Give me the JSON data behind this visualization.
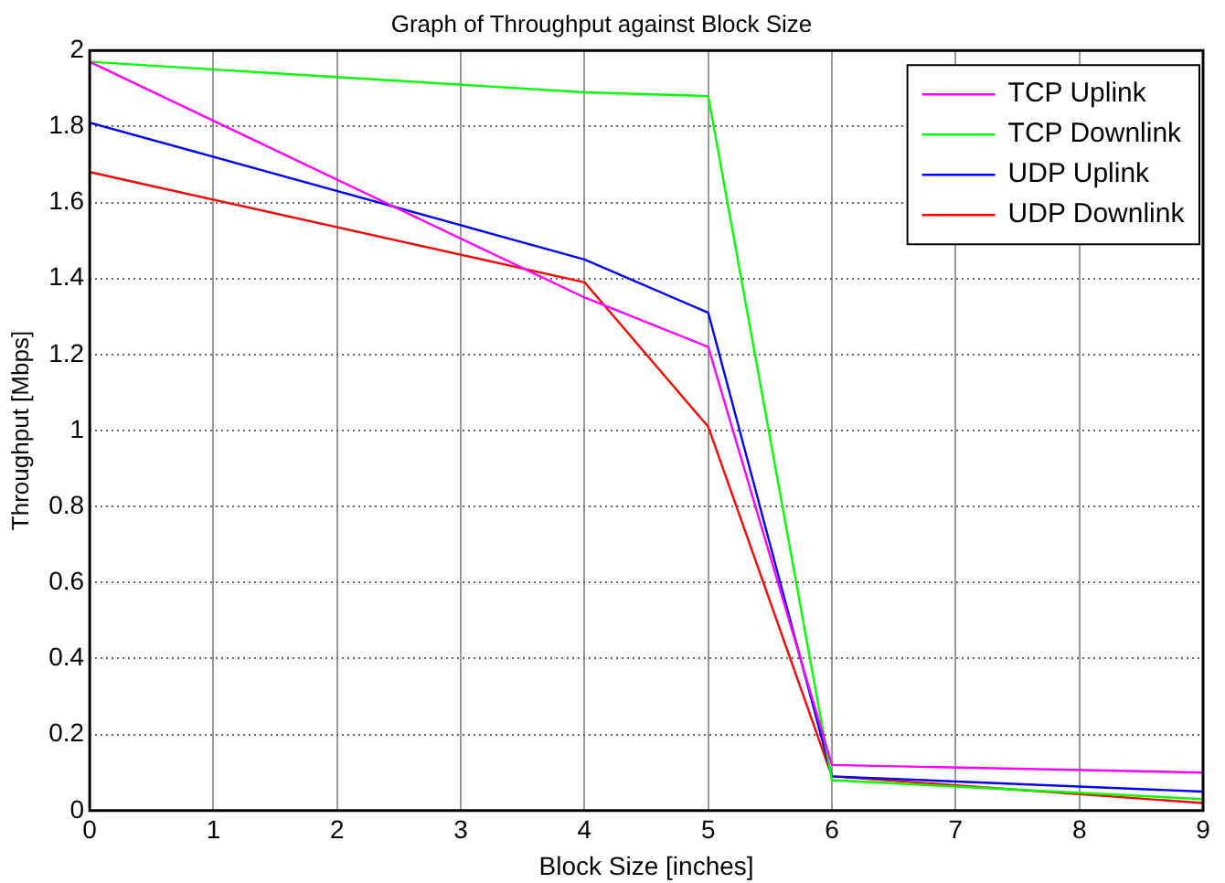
{
  "chart_data": {
    "type": "line",
    "title": "Graph of Throughput against Block Size",
    "xlabel": "Block Size [inches]",
    "ylabel": "Throughput [Mbps]",
    "x": [
      0,
      4,
      5,
      6,
      9
    ],
    "series": [
      {
        "name": "TCP Uplink",
        "color": "#ff00ff",
        "values": [
          1.97,
          1.35,
          1.22,
          0.12,
          0.1
        ]
      },
      {
        "name": "TCP Downlink",
        "color": "#00ff00",
        "values": [
          1.97,
          1.89,
          1.88,
          0.08,
          0.03
        ]
      },
      {
        "name": "UDP Uplink",
        "color": "#0000ff",
        "values": [
          1.81,
          1.45,
          1.31,
          0.09,
          0.05
        ]
      },
      {
        "name": "UDP Downlink",
        "color": "#ff0000",
        "values": [
          1.68,
          1.39,
          1.01,
          0.09,
          0.02
        ]
      }
    ],
    "xlim": [
      0,
      9
    ],
    "xticks": [
      0,
      1,
      2,
      3,
      4,
      5,
      6,
      7,
      8,
      9
    ],
    "ylim": [
      0,
      2
    ],
    "yticks": [
      0,
      0.2,
      0.4,
      0.6,
      0.8,
      1,
      1.2,
      1.4,
      1.6,
      1.8,
      2
    ],
    "grid": true,
    "legend": "top right",
    "marker": "none",
    "line_style": "solid"
  }
}
